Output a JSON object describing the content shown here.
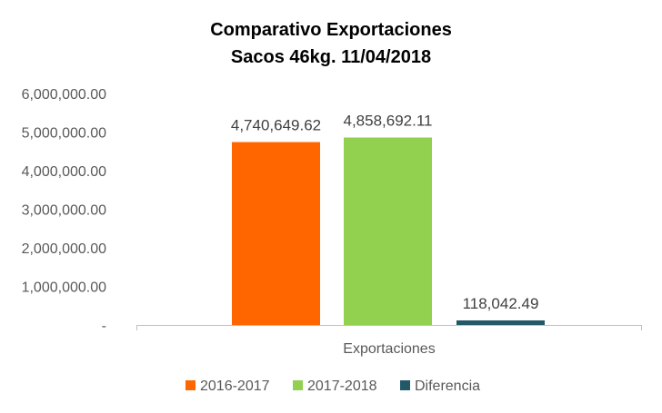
{
  "chart_data": {
    "type": "bar",
    "title": [
      "Comparativo  Exportaciones",
      "Sacos 46kg. 11/04/2018"
    ],
    "categories": [
      "Exportaciones"
    ],
    "series": [
      {
        "name": "2016-2017",
        "values": [
          4740649.62
        ],
        "label": "4,740,649.62",
        "color": "#FF6600"
      },
      {
        "name": "2017-2018",
        "values": [
          4858692.11
        ],
        "label": "4,858,692.11",
        "color": "#92D050"
      },
      {
        "name": "Diferencia",
        "values": [
          118042.49
        ],
        "label": "118,042.49",
        "color": "#215968"
      }
    ],
    "ylim": [
      0,
      6000000
    ],
    "yticks": [
      {
        "value": 0,
        "label": "-"
      },
      {
        "value": 1000000,
        "label": "1,000,000.00"
      },
      {
        "value": 2000000,
        "label": "2,000,000.00"
      },
      {
        "value": 3000000,
        "label": "3,000,000.00"
      },
      {
        "value": 4000000,
        "label": "4,000,000.00"
      },
      {
        "value": 5000000,
        "label": "5,000,000.00"
      },
      {
        "value": 6000000,
        "label": "6,000,000.00"
      }
    ],
    "grid": false,
    "legend": "bottom",
    "axis_color": "#BFBFBF"
  }
}
